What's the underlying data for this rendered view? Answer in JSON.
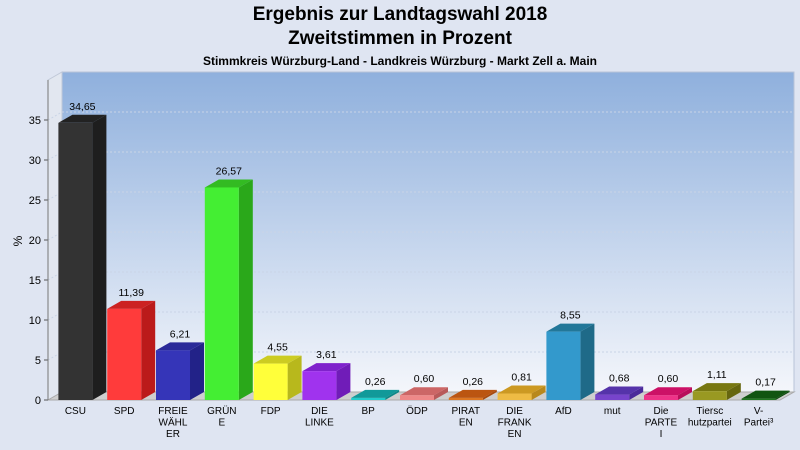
{
  "chart_data": {
    "type": "bar",
    "title": "Ergebnis zur Landtagswahl 2018",
    "subtitle": "Zweitstimmen in Prozent",
    "subsubtitle": "Stimmkreis Würzburg-Land - Landkreis Würzburg - Markt Zell a. Main",
    "ylabel": "%",
    "ylim": [
      0,
      38
    ],
    "yticks": [
      0,
      5,
      10,
      15,
      20,
      25,
      30,
      35
    ],
    "grid": true,
    "categories": [
      [
        "CSU"
      ],
      [
        "SPD"
      ],
      [
        "FREIE",
        "WÄHL",
        "ER"
      ],
      [
        "GRÜN",
        "E"
      ],
      [
        "FDP"
      ],
      [
        "DIE",
        "LINKE"
      ],
      [
        "BP"
      ],
      [
        "ÖDP"
      ],
      [
        "PIRAT",
        "EN"
      ],
      [
        "DIE",
        "FRANK",
        "EN"
      ],
      [
        "AfD"
      ],
      [
        "mut"
      ],
      [
        "Die",
        "PARTE",
        "I"
      ],
      [
        "Tiersc",
        "hutzpartei"
      ],
      [
        "V-",
        "Partei³"
      ]
    ],
    "values": [
      34.65,
      11.39,
      6.21,
      26.57,
      4.55,
      3.61,
      0.26,
      0.6,
      0.26,
      0.81,
      8.55,
      0.68,
      0.6,
      1.11,
      0.17
    ],
    "value_labels": [
      "34,65",
      "11,39",
      "6,21",
      "26,57",
      "4,55",
      "3,61",
      "0,26",
      "0,60",
      "0,26",
      "0,81",
      "8,55",
      "0,68",
      "0,60",
      "1,11",
      "0,17"
    ],
    "colors": [
      "#333333",
      "#ff3b3b",
      "#3535b8",
      "#44ee33",
      "#ffff3a",
      "#a033ee",
      "#22cccc",
      "#ee8888",
      "#dd7722",
      "#eebb44",
      "#3399cc",
      "#7744cc",
      "#ee3388",
      "#999922",
      "#227722"
    ],
    "top_colors": [
      "#222222",
      "#cc2222",
      "#2a2a99",
      "#33bb22",
      "#cccc22",
      "#7f22cc",
      "#119999",
      "#cc6666",
      "#bb5511",
      "#cc9922",
      "#227799",
      "#5533aa",
      "#cc1166",
      "#777711",
      "#115511"
    ],
    "side_colors": [
      "#1e1e1e",
      "#bb1a1a",
      "#222288",
      "#2aa81a",
      "#b8b81c",
      "#701cb8",
      "#0e8888",
      "#b85a5a",
      "#a84a0e",
      "#b8881c",
      "#1f6a88",
      "#4a2a99",
      "#b80e5a",
      "#66660e",
      "#0e4a0e"
    ]
  }
}
